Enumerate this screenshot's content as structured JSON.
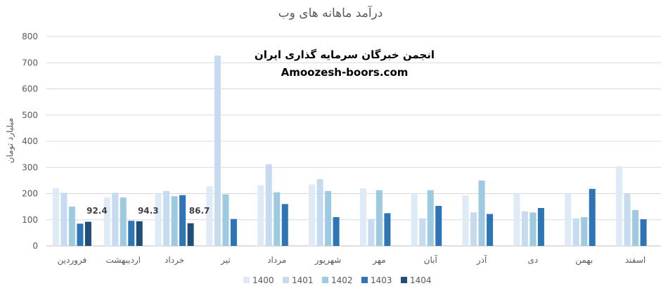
{
  "chart_data": {
    "type": "bar",
    "title": "درآمد ماهانه های وب",
    "ylabel": "میلیارد تومان",
    "xlabel": "",
    "ylim": [
      0,
      800
    ],
    "yticks": [
      0,
      100,
      200,
      300,
      400,
      500,
      600,
      700,
      800
    ],
    "grid": true,
    "legend_position": "bottom",
    "categories": [
      "فروردین",
      "اردیبهشت",
      "خرداد",
      "تیر",
      "مرداد",
      "شهریور",
      "مهر",
      "آبان",
      "آذر",
      "دی",
      "بهمن",
      "اسفند"
    ],
    "series": [
      {
        "name": "1400",
        "color": "#deebf7",
        "values": [
          220,
          185,
          200,
          228,
          232,
          235,
          220,
          200,
          193,
          200,
          200,
          305
        ]
      },
      {
        "name": "1401",
        "color": "#c6dbef",
        "values": [
          203,
          203,
          210,
          727,
          312,
          255,
          103,
          105,
          128,
          132,
          105,
          200
        ]
      },
      {
        "name": "1402",
        "color": "#9ecae1",
        "values": [
          150,
          185,
          190,
          197,
          205,
          210,
          213,
          213,
          250,
          128,
          110,
          137
        ]
      },
      {
        "name": "1403",
        "color": "#2e75b6",
        "values": [
          85,
          96,
          194,
          103,
          160,
          110,
          125,
          153,
          122,
          145,
          218,
          102
        ]
      },
      {
        "name": "1404",
        "color": "#1f4e79",
        "values": [
          92.4,
          94.3,
          86.7,
          null,
          null,
          null,
          null,
          null,
          null,
          null,
          null,
          null
        ]
      }
    ],
    "data_labels": [
      {
        "category_index": 0,
        "text": "92.4"
      },
      {
        "category_index": 1,
        "text": "94.3"
      },
      {
        "category_index": 2,
        "text": "86.7"
      }
    ]
  },
  "watermark": {
    "line1": "انجمن خبرگان سرمایه گذاری ایران",
    "line2": "Amoozesh-boors.com"
  }
}
